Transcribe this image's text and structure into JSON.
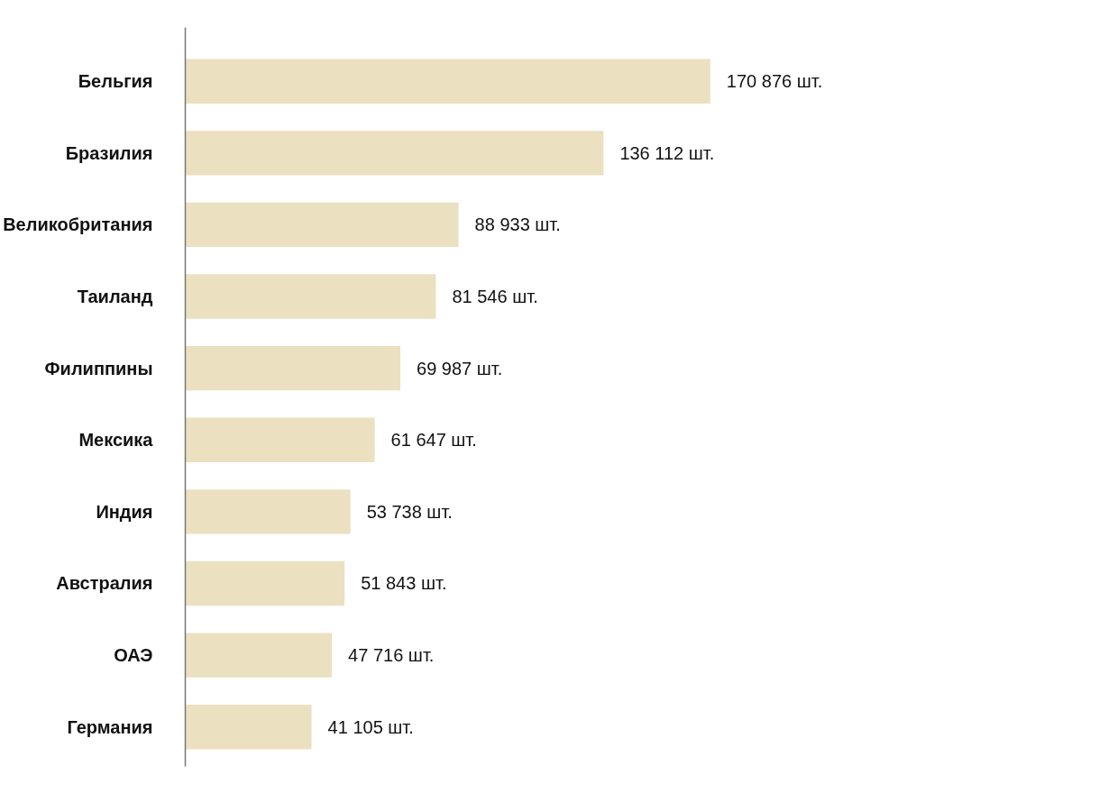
{
  "chart_data": {
    "type": "bar",
    "orientation": "horizontal",
    "categories": [
      "Бельгия",
      "Бразилия",
      "Великобритания",
      "Таиланд",
      "Филиппины",
      "Мексика",
      "Индия",
      "Австралия",
      "ОАЭ",
      "Германия"
    ],
    "values": [
      170876,
      136112,
      88933,
      81546,
      69987,
      61647,
      53738,
      51843,
      47716,
      41105
    ],
    "value_labels": [
      "170 876 шт.",
      "136 112 шт.",
      "88 933 шт.",
      "81 546 шт.",
      "69 987 шт.",
      "61 647 шт.",
      "53 738 шт.",
      "51 843 шт.",
      "47 716 шт.",
      "41 105 шт."
    ],
    "color": "#ebe0c0",
    "tick_labels": "y",
    "grid": false
  }
}
